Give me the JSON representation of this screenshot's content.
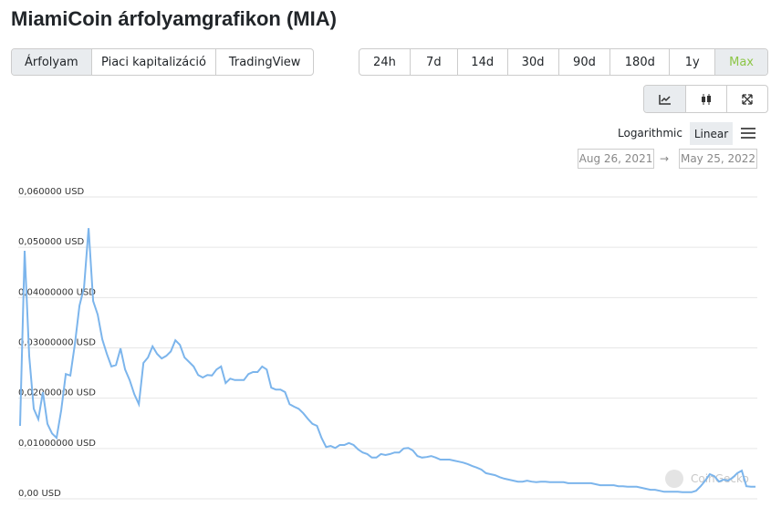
{
  "header": {
    "title": "MiamiCoin árfolyamgrafikon (MIA)"
  },
  "tabs": [
    "Árfolyam",
    "Piaci kapitalizáció",
    "TradingView"
  ],
  "ranges": [
    "24h",
    "7d",
    "14d",
    "30d",
    "90d",
    "180d",
    "1y",
    "Max"
  ],
  "scale": {
    "log": "Logarithmic",
    "linear": "Linear"
  },
  "dates": {
    "from": "Aug 26, 2021",
    "arrow": "→",
    "to": "May 25, 2022"
  },
  "watermark": "CoinGecko",
  "chart_data": {
    "type": "line",
    "color": "#7cb5ec",
    "grid": true,
    "ylim": [
      0,
      0.06
    ],
    "yticks": [
      {
        "value": 0,
        "label": "0,00 USD"
      },
      {
        "value": 0.01,
        "label": "0,01000000 USD"
      },
      {
        "value": 0.02,
        "label": "0,02000000 USD"
      },
      {
        "value": 0.03,
        "label": "0,03000000 USD"
      },
      {
        "value": 0.04,
        "label": "0,04000000 USD"
      },
      {
        "value": 0.05,
        "label": "0,050000 USD"
      },
      {
        "value": 0.06,
        "label": "0,060000 USD"
      }
    ],
    "values": [
      0.0145,
      0.0493,
      0.0284,
      0.0179,
      0.0158,
      0.0212,
      0.0149,
      0.013,
      0.0121,
      0.0176,
      0.0248,
      0.0245,
      0.0308,
      0.0384,
      0.042,
      0.0538,
      0.0393,
      0.0366,
      0.0317,
      0.0288,
      0.0263,
      0.0266,
      0.0299,
      0.0257,
      0.0236,
      0.0208,
      0.0188,
      0.027,
      0.0281,
      0.0303,
      0.0288,
      0.0279,
      0.0284,
      0.0293,
      0.0315,
      0.0306,
      0.0281,
      0.0272,
      0.0263,
      0.0246,
      0.0241,
      0.0246,
      0.0245,
      0.0257,
      0.0263,
      0.023,
      0.0239,
      0.0236,
      0.0236,
      0.0236,
      0.0248,
      0.0252,
      0.0252,
      0.0263,
      0.0257,
      0.0221,
      0.0217,
      0.0217,
      0.0212,
      0.0188,
      0.0183,
      0.0179,
      0.017,
      0.0159,
      0.0149,
      0.0145,
      0.0121,
      0.0103,
      0.0105,
      0.0101,
      0.0107,
      0.0107,
      0.0111,
      0.0107,
      0.0098,
      0.0092,
      0.0089,
      0.0082,
      0.0082,
      0.0089,
      0.0087,
      0.0089,
      0.0092,
      0.0092,
      0.01,
      0.0101,
      0.0096,
      0.0085,
      0.0082,
      0.0083,
      0.0085,
      0.0082,
      0.0078,
      0.0078,
      0.0078,
      0.0076,
      0.0074,
      0.0072,
      0.0069,
      0.0065,
      0.0062,
      0.0058,
      0.0051,
      0.0049,
      0.0047,
      0.0043,
      0.004,
      0.0038,
      0.0036,
      0.0034,
      0.0034,
      0.0036,
      0.0034,
      0.0033,
      0.0034,
      0.0034,
      0.0033,
      0.0033,
      0.0033,
      0.0033,
      0.0031,
      0.0031,
      0.0031,
      0.0031,
      0.0031,
      0.0031,
      0.0029,
      0.0027,
      0.0027,
      0.0027,
      0.0027,
      0.0025,
      0.0025,
      0.0024,
      0.0024,
      0.0024,
      0.0022,
      0.002,
      0.0018,
      0.0018,
      0.0016,
      0.0014,
      0.0014,
      0.0014,
      0.0014,
      0.0013,
      0.0013,
      0.0013,
      0.0016,
      0.0025,
      0.0036,
      0.0049,
      0.0045,
      0.0034,
      0.0038,
      0.0036,
      0.0042,
      0.0051,
      0.0056,
      0.0025,
      0.0024,
      0.0024
    ]
  }
}
